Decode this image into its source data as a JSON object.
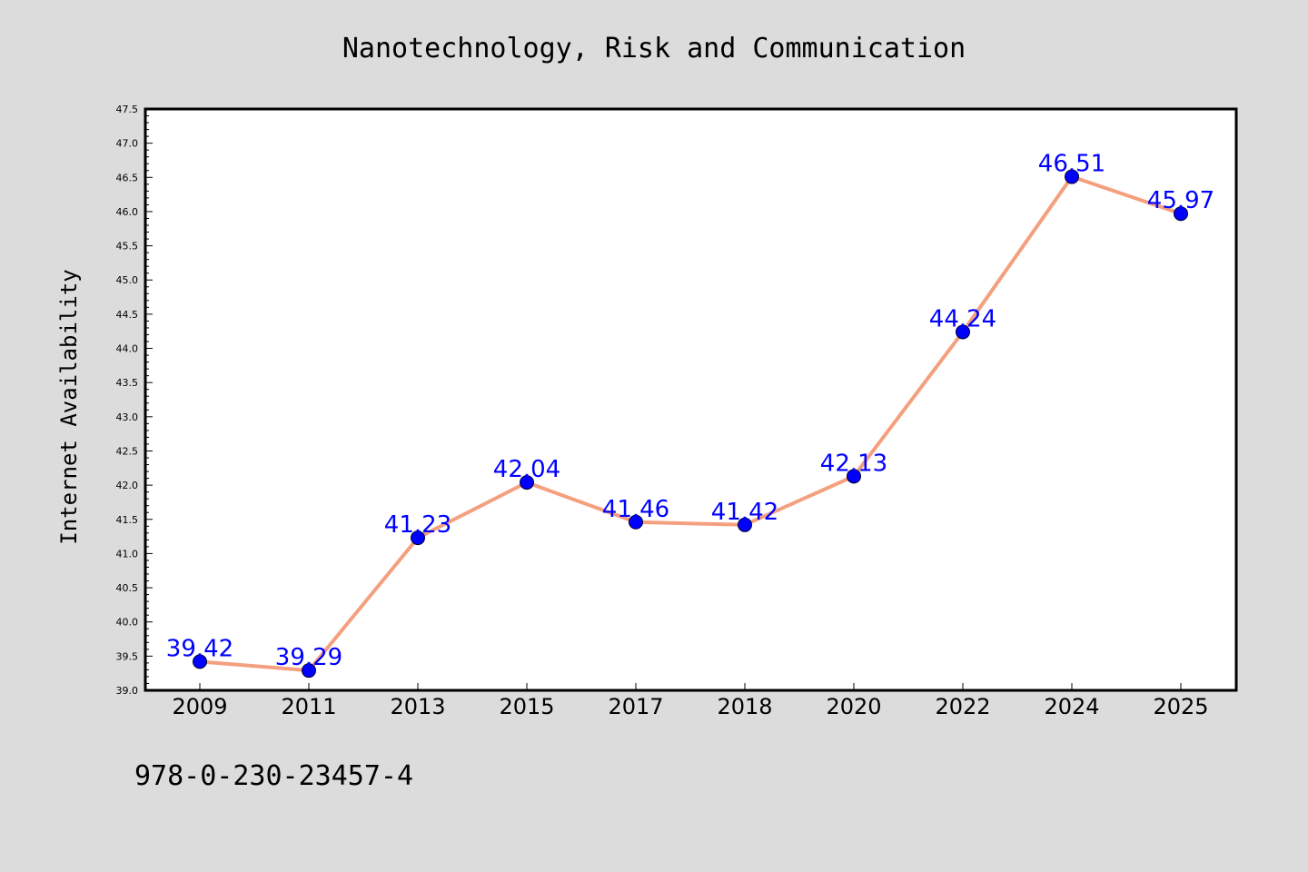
{
  "chart_data": {
    "type": "line",
    "title": "Nanotechnology, Risk and Communication",
    "xlabel": "",
    "ylabel": "Internet Availability",
    "categories": [
      "2009",
      "2011",
      "2013",
      "2015",
      "2017",
      "2018",
      "2020",
      "2022",
      "2024",
      "2025"
    ],
    "series": [
      {
        "values": [
          39.42,
          39.29,
          41.23,
          42.04,
          41.46,
          41.42,
          42.13,
          44.24,
          46.51,
          45.97
        ],
        "labels": [
          "39.42",
          "39.29",
          "41.23",
          "42.04",
          "41.46",
          "41.42",
          "42.13",
          "44.24",
          "46.51",
          "45.97"
        ],
        "line_color": "#f4a07f",
        "marker_color": "#0000ff"
      }
    ],
    "ylim": [
      39.0,
      47.5
    ],
    "yticks": [
      "39.0",
      "39.5",
      "40.0",
      "40.5",
      "41.0",
      "41.5",
      "42.0",
      "42.5",
      "43.0",
      "43.5",
      "44.0",
      "44.5",
      "45.0",
      "45.5",
      "46.0",
      "46.5",
      "47.0",
      "47.5"
    ],
    "grid": false,
    "legend": "none",
    "footer_text": "978-0-230-23457-4",
    "colors": {
      "background": "#dcdcdc",
      "plot_background": "#ffffff"
    }
  }
}
